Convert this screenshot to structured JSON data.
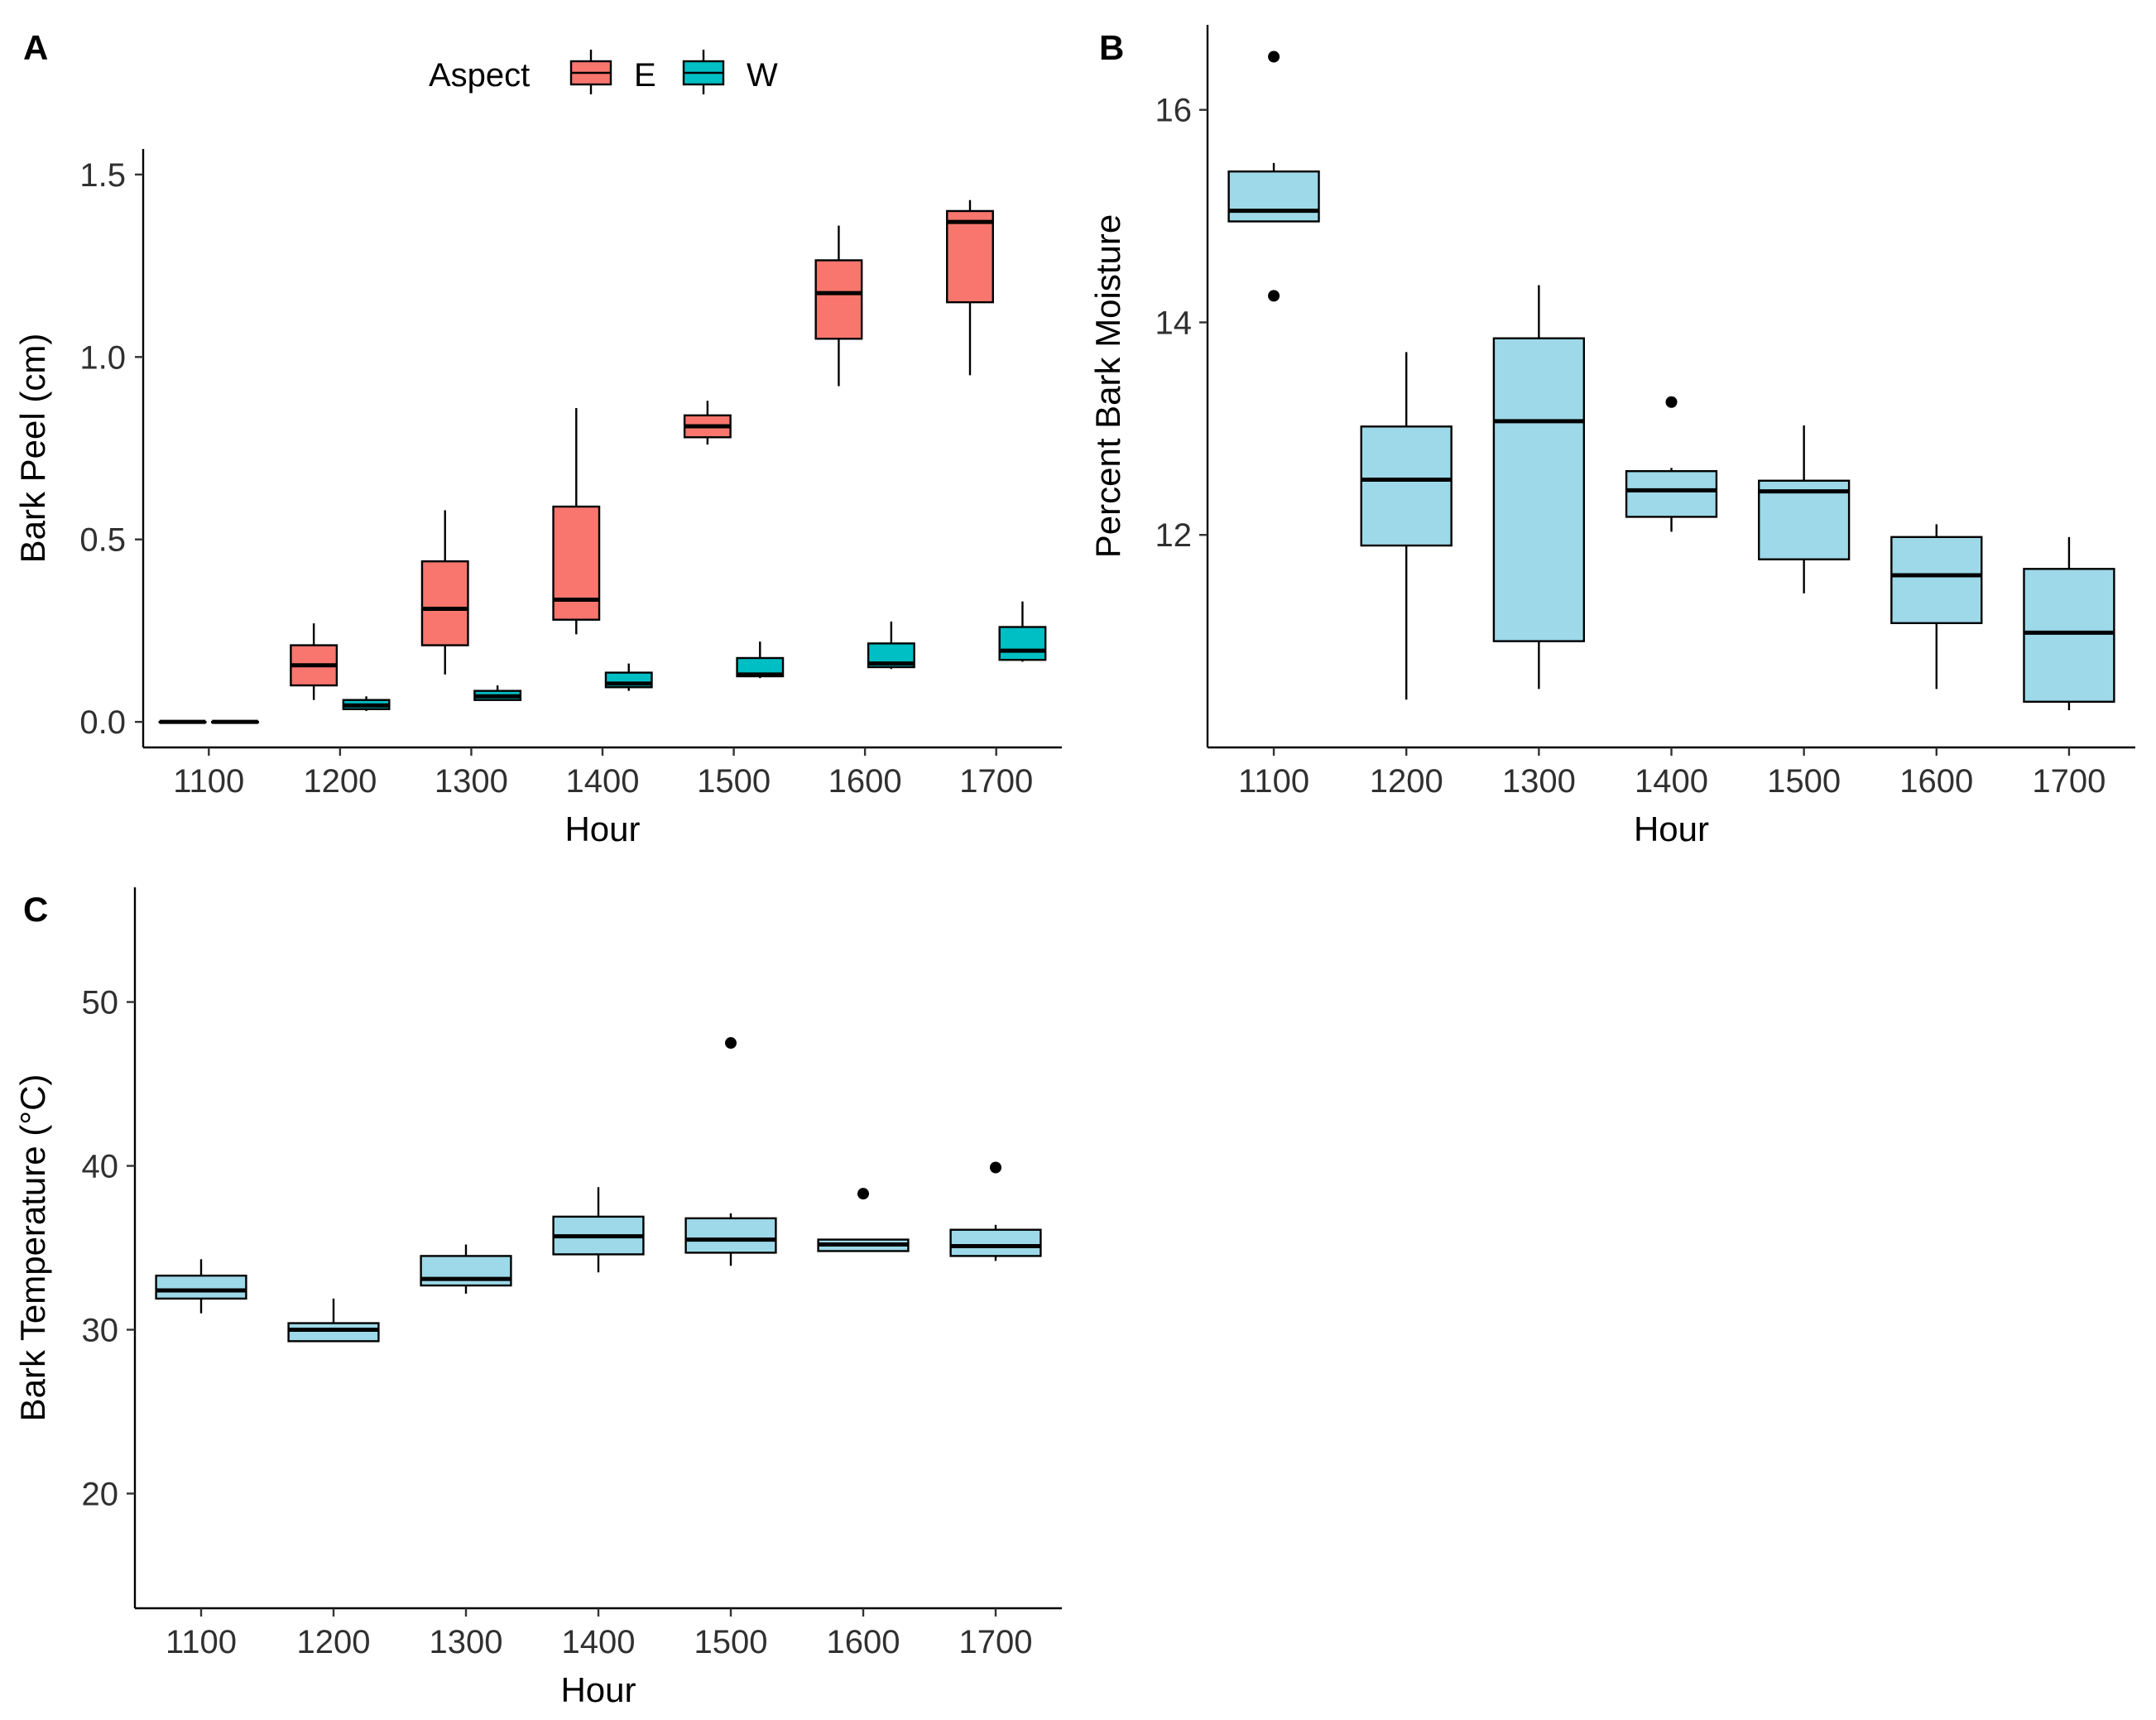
{
  "chart_data": [
    {
      "panel": "A",
      "type": "boxplot",
      "xlabel": "Hour",
      "ylabel": "Bark Peel (cm)",
      "categories": [
        "1100",
        "1200",
        "1300",
        "1400",
        "1500",
        "1600",
        "1700"
      ],
      "ylim": [
        -0.07,
        1.57
      ],
      "yticks": [
        0.0,
        0.5,
        1.0,
        1.5
      ],
      "ytick_labels": [
        "0.0",
        "0.5",
        "1.0",
        "1.5"
      ],
      "legend": {
        "title": "Aspect",
        "position": "top"
      },
      "series": [
        {
          "name": "E",
          "color": "#F8766D",
          "boxes": [
            {
              "whisker_low": 0.0,
              "q1": 0.0,
              "median": 0.0,
              "q3": 0.0,
              "whisker_high": 0.0
            },
            {
              "whisker_low": 0.06,
              "q1": 0.1,
              "median": 0.155,
              "q3": 0.21,
              "whisker_high": 0.27
            },
            {
              "whisker_low": 0.13,
              "q1": 0.21,
              "median": 0.31,
              "q3": 0.44,
              "whisker_high": 0.58
            },
            {
              "whisker_low": 0.24,
              "q1": 0.28,
              "median": 0.335,
              "q3": 0.59,
              "whisker_high": 0.86
            },
            {
              "whisker_low": 0.76,
              "q1": 0.78,
              "median": 0.81,
              "q3": 0.84,
              "whisker_high": 0.88
            },
            {
              "whisker_low": 0.92,
              "q1": 1.05,
              "median": 1.175,
              "q3": 1.265,
              "whisker_high": 1.36
            },
            {
              "whisker_low": 0.95,
              "q1": 1.15,
              "median": 1.37,
              "q3": 1.4,
              "whisker_high": 1.43
            }
          ]
        },
        {
          "name": "W",
          "color": "#00BFC4",
          "boxes": [
            {
              "whisker_low": 0.0,
              "q1": 0.0,
              "median": 0.0,
              "q3": 0.0,
              "whisker_high": 0.0
            },
            {
              "whisker_low": 0.03,
              "q1": 0.035,
              "median": 0.045,
              "q3": 0.06,
              "whisker_high": 0.07
            },
            {
              "whisker_low": 0.06,
              "q1": 0.06,
              "median": 0.07,
              "q3": 0.085,
              "whisker_high": 0.1
            },
            {
              "whisker_low": 0.085,
              "q1": 0.095,
              "median": 0.105,
              "q3": 0.135,
              "whisker_high": 0.16
            },
            {
              "whisker_low": 0.12,
              "q1": 0.125,
              "median": 0.13,
              "q3": 0.175,
              "whisker_high": 0.22
            },
            {
              "whisker_low": 0.145,
              "q1": 0.15,
              "median": 0.16,
              "q3": 0.215,
              "whisker_high": 0.275
            },
            {
              "whisker_low": 0.165,
              "q1": 0.17,
              "median": 0.195,
              "q3": 0.26,
              "whisker_high": 0.33
            }
          ]
        }
      ]
    },
    {
      "panel": "B",
      "type": "boxplot",
      "xlabel": "Hour",
      "ylabel": "Percent Bark Moisture",
      "categories": [
        "1100",
        "1200",
        "1300",
        "1400",
        "1500",
        "1600",
        "1700"
      ],
      "ylim": [
        10.0,
        16.8
      ],
      "yticks": [
        12,
        14,
        16
      ],
      "ytick_labels": [
        "12",
        "14",
        "16"
      ],
      "color": "#9DD9E8",
      "boxes": [
        {
          "whisker_low": 14.95,
          "q1": 14.95,
          "median": 15.05,
          "q3": 15.42,
          "whisker_high": 15.5,
          "outliers": [
            16.5,
            14.25
          ]
        },
        {
          "whisker_low": 10.45,
          "q1": 11.9,
          "median": 12.52,
          "q3": 13.02,
          "whisker_high": 13.72,
          "outliers": []
        },
        {
          "whisker_low": 10.55,
          "q1": 11.0,
          "median": 13.07,
          "q3": 13.85,
          "whisker_high": 14.35,
          "outliers": []
        },
        {
          "whisker_low": 12.03,
          "q1": 12.17,
          "median": 12.42,
          "q3": 12.6,
          "whisker_high": 12.63,
          "outliers": [
            13.25
          ]
        },
        {
          "whisker_low": 11.45,
          "q1": 11.77,
          "median": 12.41,
          "q3": 12.51,
          "whisker_high": 13.03,
          "outliers": []
        },
        {
          "whisker_low": 10.55,
          "q1": 11.17,
          "median": 11.62,
          "q3": 11.98,
          "whisker_high": 12.1,
          "outliers": []
        },
        {
          "whisker_low": 10.35,
          "q1": 10.43,
          "median": 11.08,
          "q3": 11.68,
          "whisker_high": 11.98,
          "outliers": []
        }
      ]
    },
    {
      "panel": "C",
      "type": "boxplot",
      "xlabel": "Hour",
      "ylabel": "Bark Temperature (°C)",
      "categories": [
        "1100",
        "1200",
        "1300",
        "1400",
        "1500",
        "1600",
        "1700"
      ],
      "ylim": [
        13.0,
        57.0
      ],
      "yticks": [
        20,
        30,
        40,
        50
      ],
      "ytick_labels": [
        "20",
        "30",
        "40",
        "50"
      ],
      "color": "#9DD9E8",
      "boxes": [
        {
          "whisker_low": 31.0,
          "q1": 31.9,
          "median": 32.4,
          "q3": 33.3,
          "whisker_high": 34.3,
          "outliers": []
        },
        {
          "whisker_low": 29.3,
          "q1": 29.3,
          "median": 30.0,
          "q3": 30.4,
          "whisker_high": 31.9,
          "outliers": []
        },
        {
          "whisker_low": 32.2,
          "q1": 32.7,
          "median": 33.1,
          "q3": 34.5,
          "whisker_high": 35.2,
          "outliers": []
        },
        {
          "whisker_low": 33.5,
          "q1": 34.6,
          "median": 35.7,
          "q3": 36.9,
          "whisker_high": 38.7,
          "outliers": []
        },
        {
          "whisker_low": 33.9,
          "q1": 34.7,
          "median": 35.5,
          "q3": 36.8,
          "whisker_high": 37.1,
          "outliers": [
            47.5
          ]
        },
        {
          "whisker_low": 34.8,
          "q1": 34.8,
          "median": 35.2,
          "q3": 35.5,
          "whisker_high": 35.5,
          "outliers": [
            38.3
          ]
        },
        {
          "whisker_low": 34.2,
          "q1": 34.5,
          "median": 35.1,
          "q3": 36.1,
          "whisker_high": 36.4,
          "outliers": [
            39.9
          ]
        }
      ]
    }
  ]
}
